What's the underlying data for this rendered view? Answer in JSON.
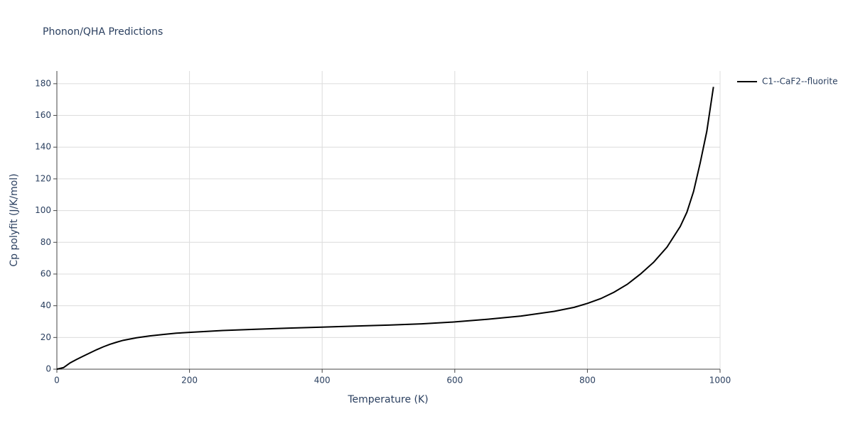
{
  "chart_data": {
    "type": "line",
    "title": "Phonon/QHA Predictions",
    "x_label": "Temperature (K)",
    "y_label": "Cp polyfit (J/K/mol)",
    "x": [
      0,
      10,
      20,
      30,
      40,
      50,
      60,
      70,
      80,
      90,
      100,
      120,
      140,
      160,
      180,
      200,
      250,
      300,
      350,
      400,
      450,
      500,
      550,
      600,
      650,
      700,
      750,
      780,
      800,
      820,
      840,
      860,
      880,
      900,
      920,
      940,
      950,
      960,
      970,
      980,
      990
    ],
    "series": [
      {
        "name": "C1--CaF2--fluorite",
        "color": "#000000",
        "values": [
          0,
          1,
          4,
          6.2,
          8.3,
          10.3,
          12.3,
          14.1,
          15.7,
          17,
          18.2,
          19.8,
          21,
          21.9,
          22.7,
          23.2,
          24.4,
          25.2,
          25.9,
          26.5,
          27.2,
          27.8,
          28.6,
          29.8,
          31.5,
          33.5,
          36.5,
          39,
          41.5,
          44.5,
          48.5,
          53.5,
          60,
          67.5,
          77,
          90,
          99,
          112,
          130,
          150,
          178
        ]
      }
    ],
    "xlim": [
      0,
      1000
    ],
    "xticks": [
      0,
      200,
      400,
      600,
      800,
      1000
    ],
    "ylim": [
      0,
      188
    ],
    "yticks": [
      0,
      20,
      40,
      60,
      80,
      100,
      120,
      140,
      160,
      180
    ],
    "grid": true,
    "legend": "right"
  }
}
